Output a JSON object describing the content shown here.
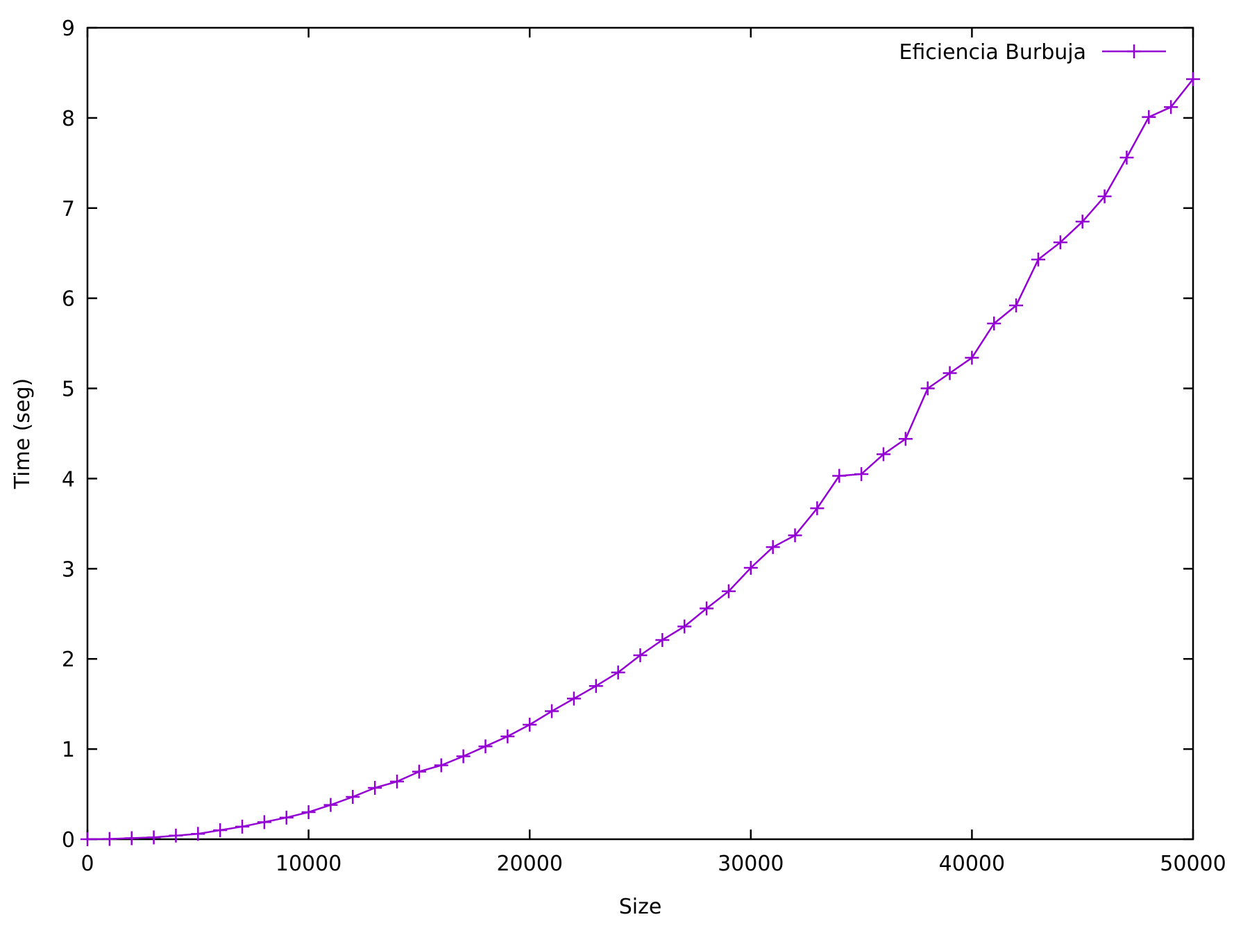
{
  "chart_data": {
    "type": "line",
    "title": "",
    "xlabel": "Size",
    "ylabel": "Time (seg)",
    "xlim": [
      0,
      50000
    ],
    "ylim": [
      0,
      9
    ],
    "xticks": [
      0,
      10000,
      20000,
      30000,
      40000,
      50000
    ],
    "yticks": [
      0,
      1,
      2,
      3,
      4,
      5,
      6,
      7,
      8,
      9
    ],
    "grid": false,
    "legend_position": "top-right",
    "colors": {
      "series": "#9400d3",
      "axis": "#000000"
    },
    "series": [
      {
        "name": "Eficiencia Burbuja",
        "marker": "plus",
        "x": [
          0,
          1000,
          2000,
          3000,
          4000,
          5000,
          6000,
          7000,
          8000,
          9000,
          10000,
          11000,
          12000,
          13000,
          14000,
          15000,
          16000,
          17000,
          18000,
          19000,
          20000,
          21000,
          22000,
          23000,
          24000,
          25000,
          26000,
          27000,
          28000,
          29000,
          30000,
          31000,
          32000,
          33000,
          34000,
          35000,
          36000,
          37000,
          38000,
          39000,
          40000,
          41000,
          42000,
          43000,
          44000,
          45000,
          46000,
          47000,
          48000,
          49000,
          50000
        ],
        "values": [
          0.0,
          0.003,
          0.012,
          0.02,
          0.04,
          0.06,
          0.1,
          0.14,
          0.19,
          0.24,
          0.3,
          0.38,
          0.47,
          0.57,
          0.64,
          0.75,
          0.82,
          0.92,
          1.03,
          1.14,
          1.27,
          1.42,
          1.56,
          1.7,
          1.85,
          2.04,
          2.21,
          2.36,
          2.56,
          2.75,
          3.01,
          3.24,
          3.37,
          3.67,
          4.03,
          4.05,
          4.27,
          4.44,
          5.0,
          5.17,
          5.34,
          5.72,
          5.92,
          6.43,
          6.62,
          6.85,
          7.13,
          7.56,
          8.01,
          8.12,
          8.43
        ]
      }
    ]
  }
}
